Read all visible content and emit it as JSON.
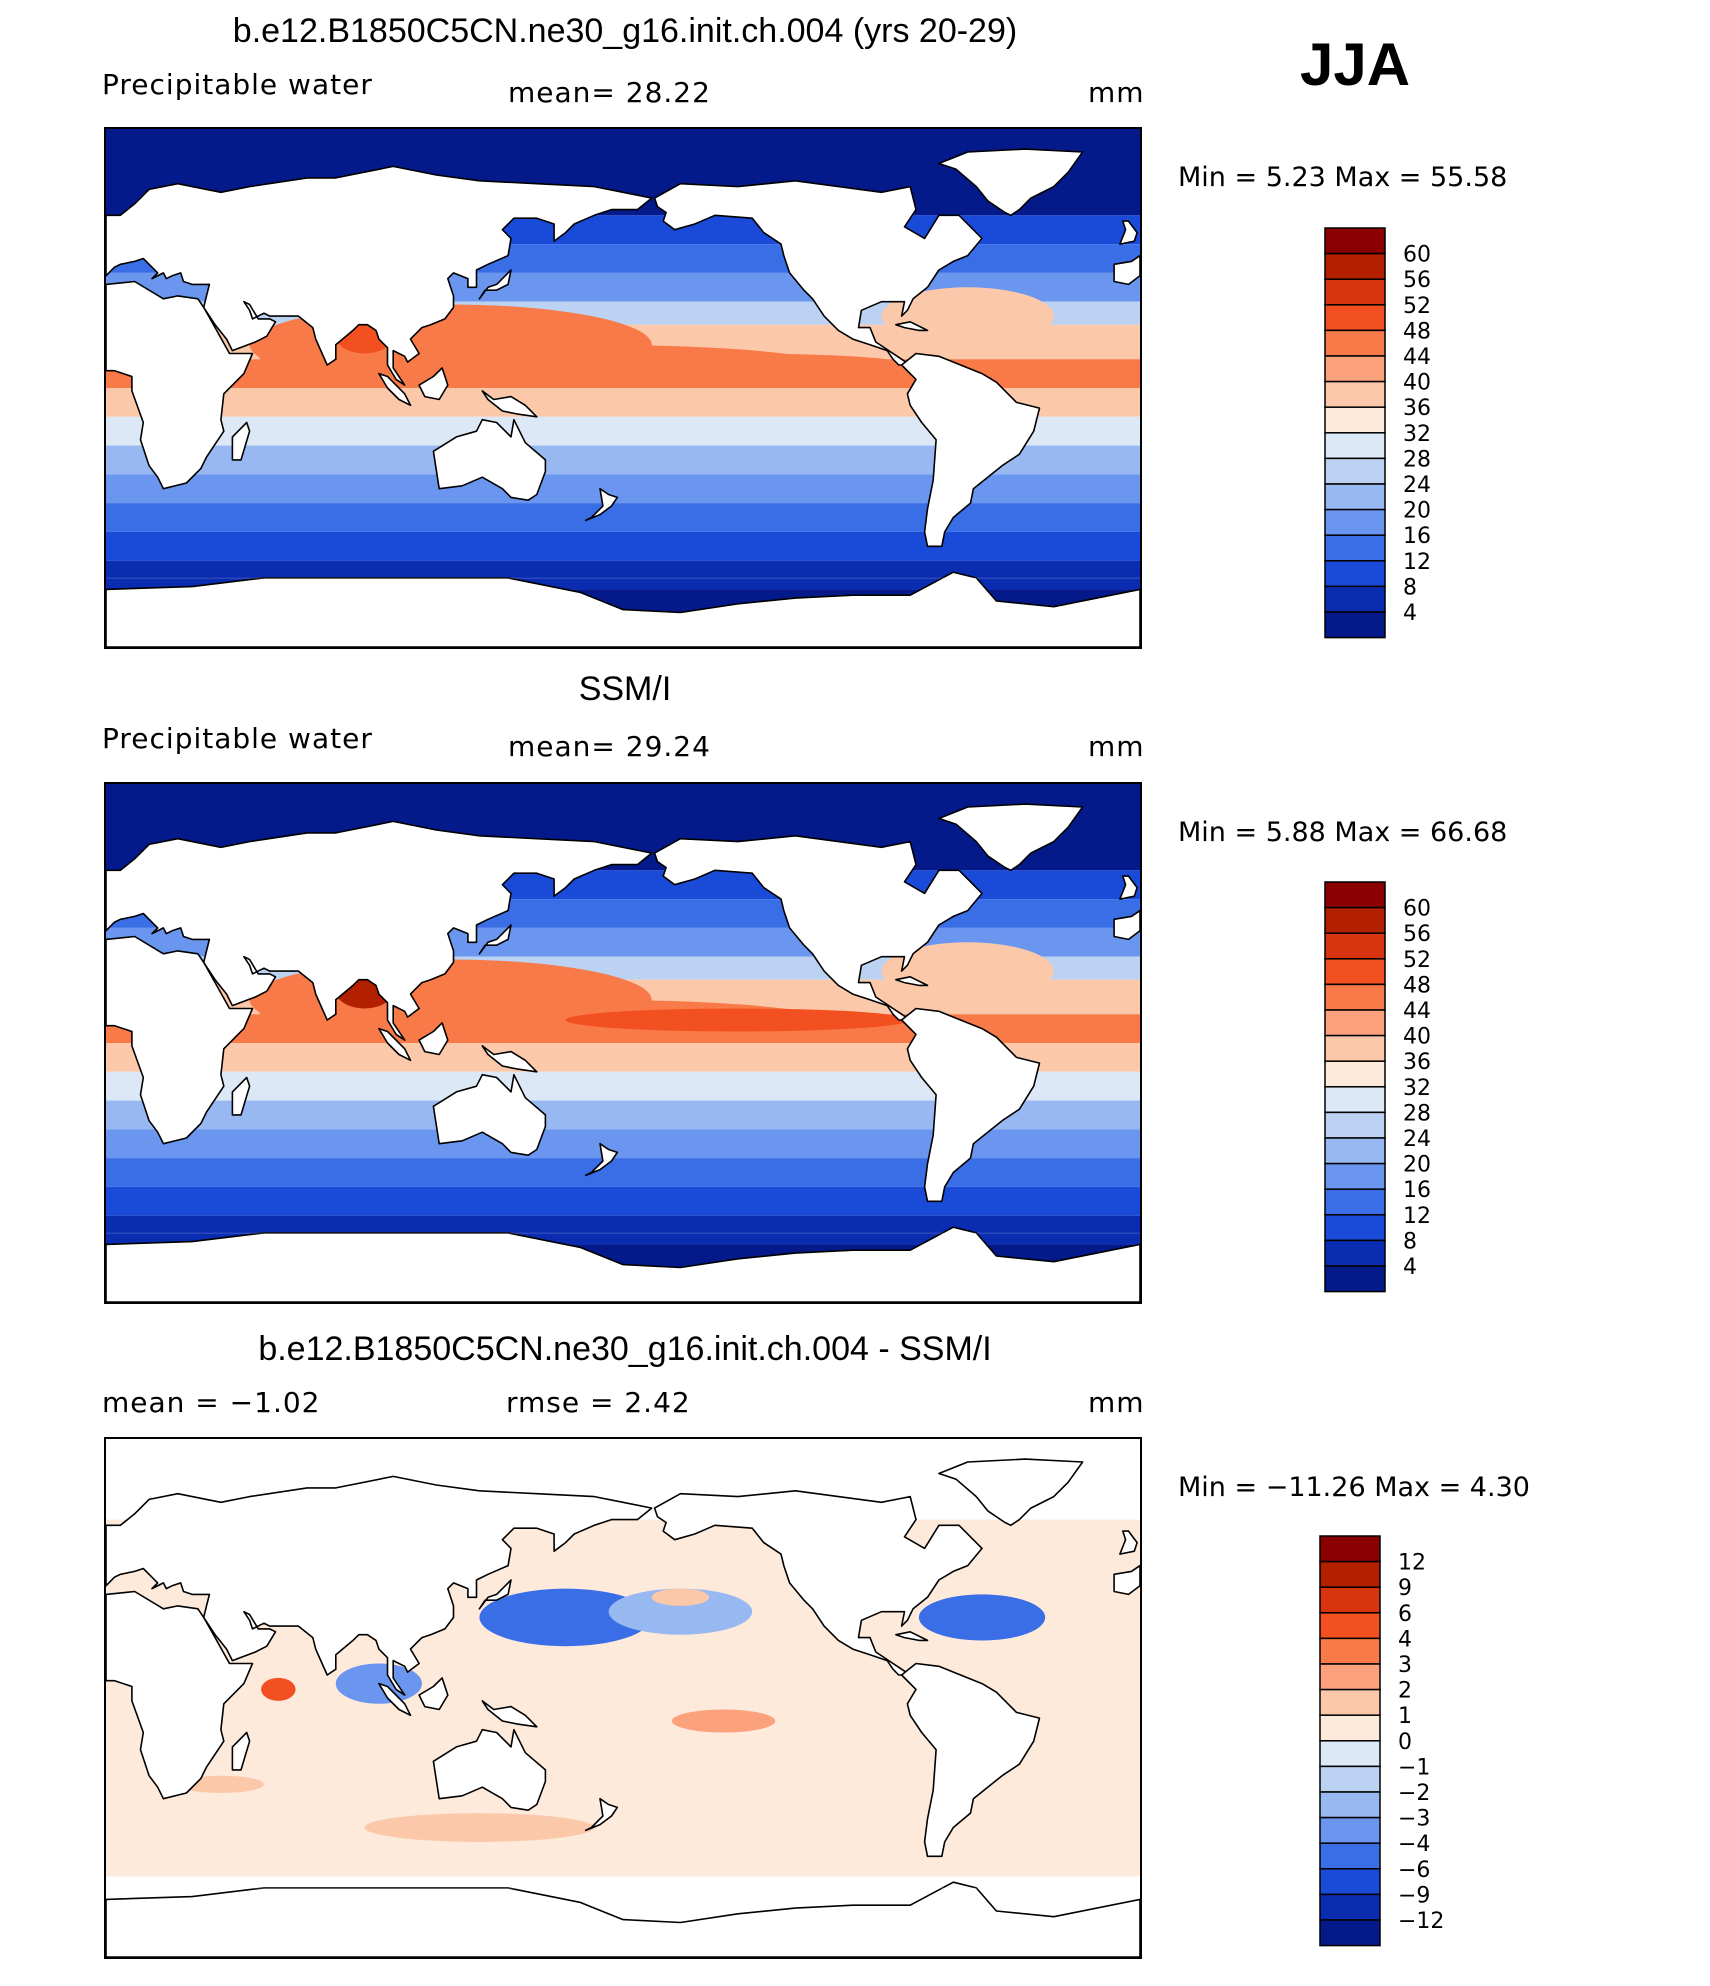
{
  "season": "JJA",
  "panels": [
    {
      "title": "b.e12.B1850C5CN.ne30_g16.init.ch.004 (yrs 20-29)",
      "left_label": "Precipitable  water",
      "center_label": "mean=   28.22",
      "units": "mm",
      "minmax": "Min  =    5.23  Max  =    55.58",
      "colorbar_labels": [
        "60",
        "56",
        "52",
        "48",
        "44",
        "40",
        "36",
        "32",
        "28",
        "24",
        "20",
        "16",
        "12",
        "8",
        "4"
      ]
    },
    {
      "title": "SSM/I",
      "left_label": "Precipitable  water",
      "center_label": "mean=   29.24",
      "units": "mm",
      "minmax": "Min  =    5.88  Max  =    66.68",
      "colorbar_labels": [
        "60",
        "56",
        "52",
        "48",
        "44",
        "40",
        "36",
        "32",
        "28",
        "24",
        "20",
        "16",
        "12",
        "8",
        "4"
      ]
    },
    {
      "title": "b.e12.B1850C5CN.ne30_g16.init.ch.004 - SSM/I",
      "left_label": "mean  =    −1.02",
      "center_label": "rmse  =     2.42",
      "units": "mm",
      "minmax": "Min  =  −11.26  Max  =     4.30",
      "colorbar_labels": [
        "12",
        "9",
        "6",
        "4",
        "3",
        "2",
        "1",
        "0",
        "−1",
        "−2",
        "−3",
        "−4",
        "−6",
        "−9",
        "−12"
      ]
    }
  ],
  "colors": {
    "palette": [
      "#8b0000",
      "#b22000",
      "#d83410",
      "#f25020",
      "#f87a48",
      "#fba27c",
      "#fcc8aa",
      "#fdeadb",
      "#dce8f6",
      "#bcd2f2",
      "#98b8f2",
      "#6a96f0",
      "#3a6ee6",
      "#1a4ad8",
      "#0a2cb0",
      "#041a8a"
    ],
    "land_fill": "#ffffff",
    "coast": "#000000"
  }
}
